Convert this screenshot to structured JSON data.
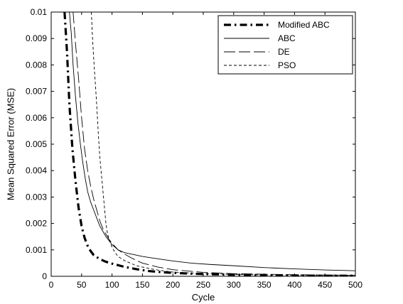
{
  "chart_data": {
    "type": "line",
    "title": "",
    "xlabel": "Cycle",
    "ylabel": "Mean Squared Error (MSE)",
    "xlim": [
      0,
      500
    ],
    "ylim": [
      0,
      0.01
    ],
    "xticks": [
      0,
      50,
      100,
      150,
      200,
      250,
      300,
      350,
      400,
      450,
      500
    ],
    "yticks": [
      0,
      0.001,
      0.002,
      0.003,
      0.004,
      0.005,
      0.006,
      0.007,
      0.008,
      0.009,
      0.01
    ],
    "ytick_labels": [
      "0",
      "0.001",
      "0.002",
      "0.003",
      "0.004",
      "0.005",
      "0.006",
      "0.007",
      "0.008",
      "0.009",
      "0.01"
    ],
    "grid": false,
    "legend_position": "top-right",
    "series": [
      {
        "name": "Modified ABC",
        "style": "dash-dot-thick",
        "color": "#000000",
        "x": [
          22,
          26,
          30,
          35,
          40,
          45,
          50,
          55,
          60,
          65,
          70,
          80,
          90,
          100,
          120,
          140,
          160,
          180,
          200,
          230,
          260,
          300,
          350,
          400,
          450,
          500
        ],
        "y": [
          0.01,
          0.0085,
          0.0065,
          0.0048,
          0.0036,
          0.0026,
          0.0019,
          0.00145,
          0.00115,
          0.00095,
          0.0008,
          0.00065,
          0.00055,
          0.00048,
          0.00036,
          0.00027,
          0.0002,
          0.00016,
          0.00013,
          0.0001,
          8e-05,
          6e-05,
          4e-05,
          3e-05,
          2e-05,
          2e-05
        ]
      },
      {
        "name": "ABC",
        "style": "solid",
        "color": "#000000",
        "x": [
          30,
          33,
          36,
          40,
          44,
          48,
          52,
          56,
          60,
          65,
          70,
          75,
          80,
          85,
          90,
          95,
          100,
          110,
          120,
          130,
          140,
          150,
          170,
          200,
          230,
          260,
          300,
          350,
          400,
          450,
          500
        ],
        "y": [
          0.01,
          0.0092,
          0.008,
          0.0068,
          0.0058,
          0.005,
          0.0043,
          0.0037,
          0.0032,
          0.0028,
          0.0025,
          0.0022,
          0.0019,
          0.0017,
          0.0015,
          0.00135,
          0.0012,
          0.001,
          0.0009,
          0.00085,
          0.0008,
          0.00075,
          0.00068,
          0.00058,
          0.0005,
          0.00045,
          0.0004,
          0.00033,
          0.00028,
          0.00024,
          0.00021
        ]
      },
      {
        "name": "DE",
        "style": "long-dash",
        "color": "#000000",
        "x": [
          36,
          40,
          45,
          50,
          55,
          60,
          65,
          70,
          75,
          80,
          85,
          90,
          95,
          100,
          110,
          120,
          130,
          140,
          150,
          175,
          200,
          250,
          300,
          350,
          400,
          450,
          500
        ],
        "y": [
          0.01,
          0.0088,
          0.0075,
          0.006,
          0.0048,
          0.004,
          0.0034,
          0.0029,
          0.0025,
          0.0021,
          0.0018,
          0.0016,
          0.0014,
          0.00125,
          0.001,
          0.00085,
          0.00072,
          0.0006,
          0.0005,
          0.00035,
          0.00025,
          0.00015,
          0.0001,
          8e-05,
          6e-05,
          5e-05,
          4e-05
        ]
      },
      {
        "name": "PSO",
        "style": "short-dash",
        "color": "#000000",
        "x": [
          66,
          68,
          70,
          72,
          74,
          76,
          78,
          80,
          82,
          84,
          86,
          88,
          90,
          92,
          95,
          100,
          105,
          110,
          120,
          130,
          140,
          160,
          180,
          200,
          250,
          300,
          350,
          400,
          450,
          500
        ],
        "y": [
          0.01,
          0.009,
          0.0082,
          0.0075,
          0.0068,
          0.006,
          0.0052,
          0.0045,
          0.004,
          0.0035,
          0.003,
          0.0025,
          0.002,
          0.0017,
          0.0014,
          0.0011,
          0.0009,
          0.00075,
          0.0006,
          0.0005,
          0.0004,
          0.0003,
          0.00022,
          0.00016,
          0.0001,
          7e-05,
          5e-05,
          4e-05,
          3e-05,
          2e-05
        ]
      }
    ]
  }
}
